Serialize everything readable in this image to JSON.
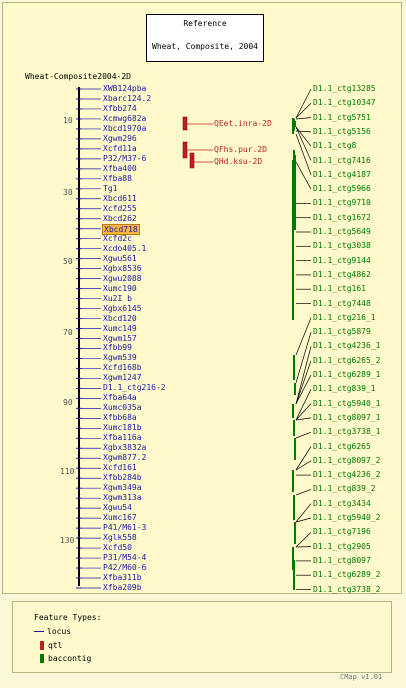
{
  "reference": {
    "line1": "Reference",
    "line2": "Wheat, Composite, 2004"
  },
  "map_title": "Wheat-Composite2004-2D",
  "scale_labels": [
    "10",
    "30",
    "50",
    "70",
    "90",
    "110",
    "130"
  ],
  "markers": [
    "XWB124pba",
    "Xbarc124.2",
    "Xfbb274",
    "Xcmwg682a",
    "Xbcd1970a",
    "Xgwm296",
    "Xcfd11a",
    "P32/M37-6",
    "Xfba400",
    "Xfba88",
    "Tg1",
    "Xbcd611",
    "Xcfd255",
    "Xbcd262",
    "Xbcd718",
    "Xcfd2c",
    "Xcdo405.1",
    "Xgwu561",
    "Xgbx8536",
    "Xgwu2088",
    "Xumc190",
    "Xu2I b",
    "Xgbx6145",
    "Xbcd120",
    "Xumc149",
    "Xgwm157",
    "Xfbb99",
    "Xgwm539",
    "Xcfd168b",
    "Xgwm1247",
    "D1.1_ctg216-2",
    "Xfba64a",
    "Xumc035a",
    "Xfbb68a",
    "Xumc181b",
    "Xfba116a",
    "Xgbx3832a",
    "Xgwm877.2",
    "Xcfd161",
    "Xfbb284b",
    "Xgwm349a",
    "Xgwm313a",
    "Xgwu54",
    "Xumc167",
    "P41/M61-3",
    "Xglk558",
    "Xcfd50",
    "P31/M54-4",
    "P42/M60-6",
    "Xfba311b",
    "Xfba209b"
  ],
  "highlighted_marker": "Xbcd718",
  "qtls": [
    "QEet.inra-2D",
    "QFhs.pur.2D",
    "QHd.ksu-2D"
  ],
  "contigs": [
    "D1.1_ctg13285",
    "D1.1_ctg10347",
    "D1.1_ctg5751",
    "D1.1_ctg5156",
    "D1.1_ctg8",
    "D1.1_ctg7416",
    "D1.1_ctg4187",
    "D1.1_ctg5966",
    "D1.1_ctg9710",
    "D1.1_ctg1672",
    "D1.1_ctg5649",
    "D1.1_ctg3038",
    "D1.1_ctg9144",
    "D1.1_ctg4862",
    "D1.1_ctg161",
    "D1.1_ctg7448",
    "D1.1_ctg216_1",
    "D1.1_ctg5879",
    "D1.1_ctg4236_1",
    "D1.1_ctg6265_2",
    "D1.1_ctg6289_1",
    "D1.1_ctg839_1",
    "D1.1_ctg5940_1",
    "D1.1_ctg8097_1",
    "D1.1_ctg3738_1",
    "D1.1_ctg6265",
    "D1.1_ctg8097_2",
    "D1.1_ctg4236_2",
    "D1.1_ctg839_2",
    "D1.1_ctg3434",
    "D1.1_ctg5940_2",
    "D1.1_ctg7196",
    "D1.1_ctg2905",
    "D1.1_ctg8097",
    "D1.1_ctg6289_2",
    "D1.1_ctg3738_2"
  ],
  "legend": {
    "title": "Feature Types:",
    "locus": "locus",
    "qtl": "qtl",
    "baccontig": "baccontig"
  },
  "footer": "CMap v1.01",
  "colors": {
    "locus": "#1a1aa6",
    "qtl": "#c02020",
    "contig": "#007a00",
    "highlight": "#f5b642"
  }
}
